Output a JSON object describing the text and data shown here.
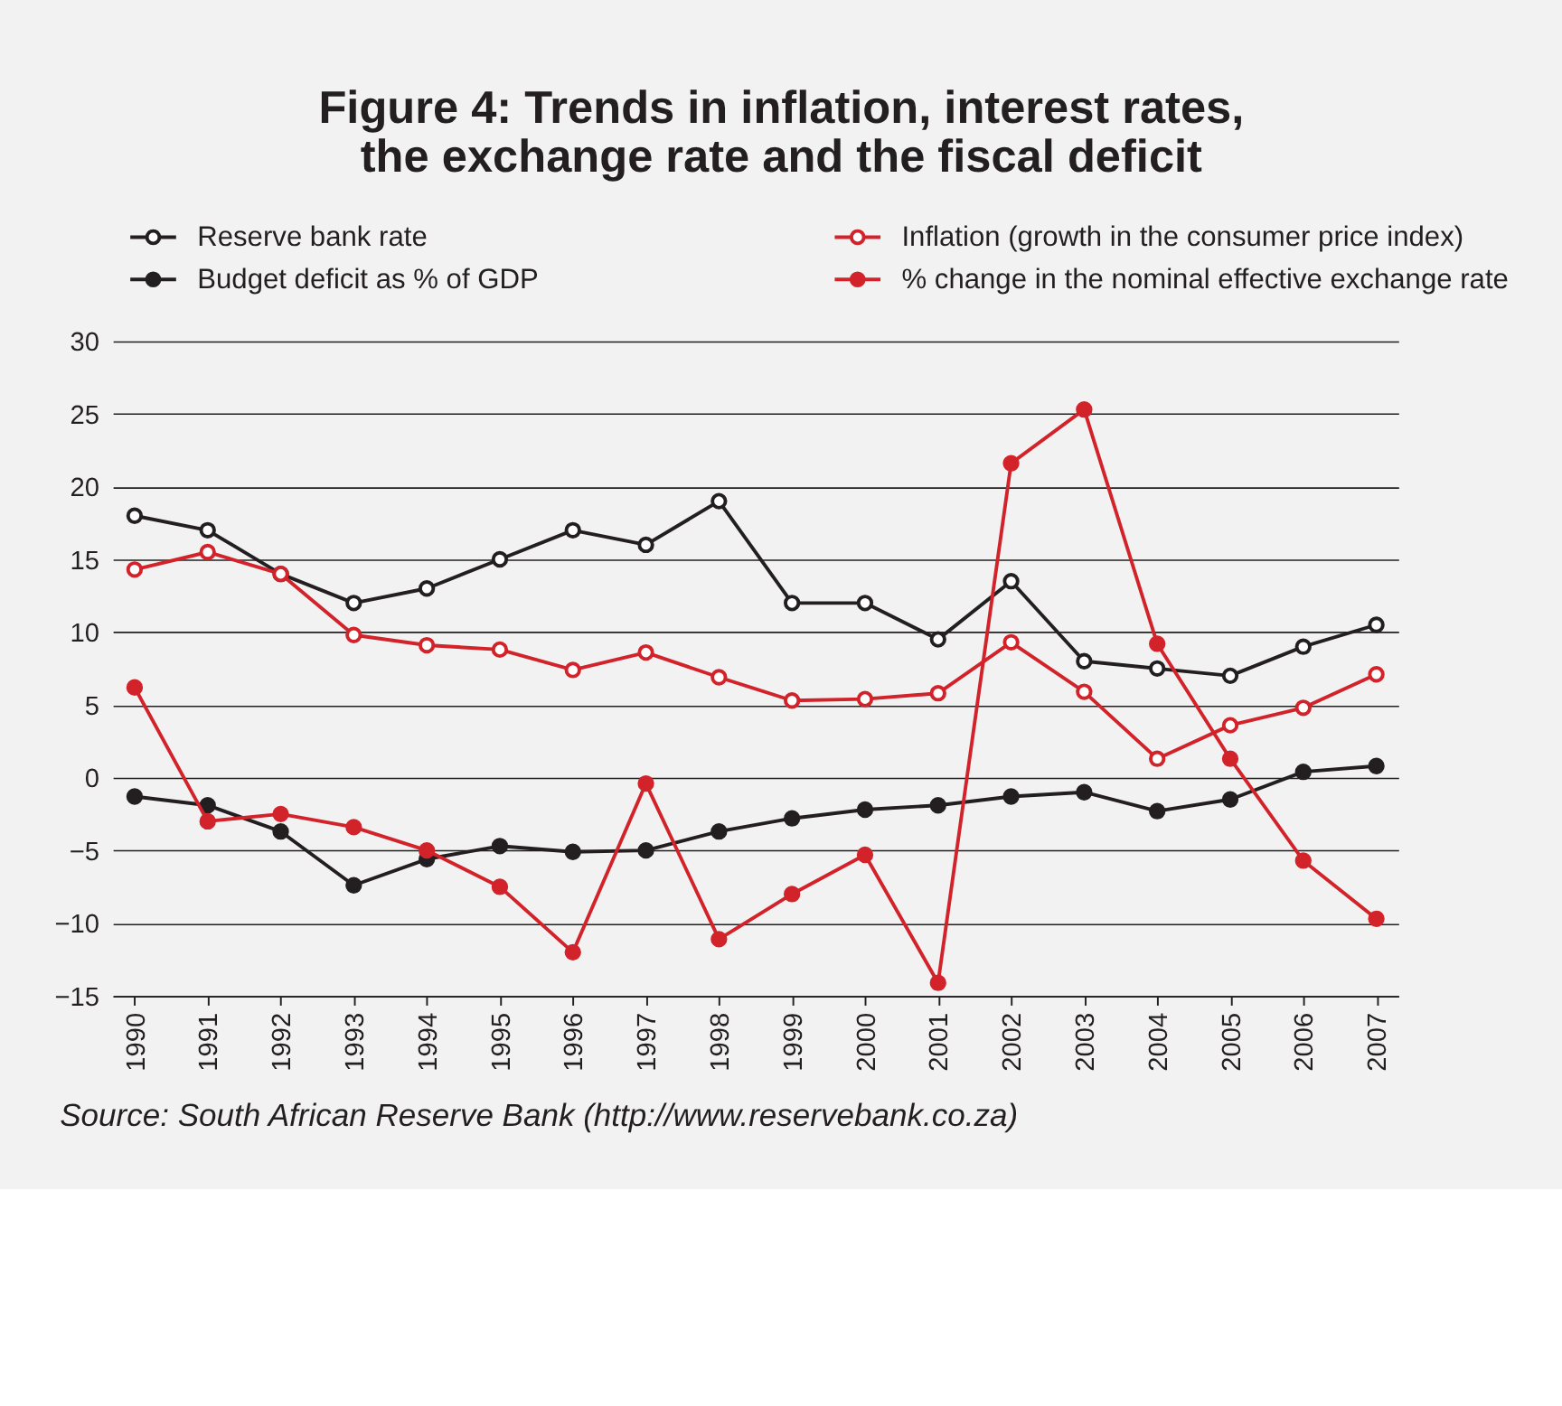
{
  "chart_data": {
    "type": "line",
    "title": "Figure 4: Trends in inflation, interest rates, the exchange rate and the fiscal deficit",
    "categories": [
      "1990",
      "1991",
      "1992",
      "1993",
      "1994",
      "1995",
      "1996",
      "1997",
      "1998",
      "1999",
      "2000",
      "2001",
      "2002",
      "2003",
      "2004",
      "2005",
      "2006",
      "2007"
    ],
    "series": [
      {
        "name": "Reserve bank rate",
        "color": "#231f20",
        "marker": "circle_open",
        "values": [
          18,
          17,
          14,
          12,
          13,
          15,
          17,
          16,
          19,
          12,
          12,
          9.5,
          13.5,
          8,
          7.5,
          7,
          9,
          10.5
        ]
      },
      {
        "name": "Inflation (growth in the consumer price index)",
        "color": "#d2232a",
        "marker": "circle_open",
        "values": [
          14.3,
          15.5,
          14,
          9.8,
          9.1,
          8.8,
          7.4,
          8.6,
          6.9,
          5.3,
          5.4,
          5.8,
          9.3,
          5.9,
          1.3,
          3.6,
          4.8,
          7.1
        ]
      },
      {
        "name": "Budget deficit as % of GDP",
        "color": "#231f20",
        "marker": "circle",
        "values": [
          -1.3,
          -1.9,
          -3.7,
          -7.4,
          -5.6,
          -4.7,
          -5.1,
          -5,
          -3.7,
          -2.8,
          -2.2,
          -1.9,
          -1.3,
          -1,
          -2.3,
          -1.5,
          0.4,
          0.8
        ]
      },
      {
        "name": "% change in the nominal effective exchange rate",
        "color": "#d2232a",
        "marker": "circle",
        "values": [
          6.2,
          -3,
          -2.5,
          -3.4,
          -5,
          -7.5,
          -12,
          -0.4,
          -11.1,
          -8,
          -5.3,
          -14.1,
          21.6,
          25.3,
          9.2,
          1.3,
          -5.7,
          -9.7
        ]
      }
    ],
    "ylim": [
      -15,
      30
    ],
    "yticks": [
      -15,
      -10,
      -5,
      0,
      5,
      10,
      15,
      20,
      25,
      30
    ],
    "grid": "y",
    "legend": "top",
    "marker": "circle",
    "line_style": "solid",
    "annotations": [
      "Source: South African Reserve Bank (http://www.reservebank.co.za)"
    ]
  }
}
